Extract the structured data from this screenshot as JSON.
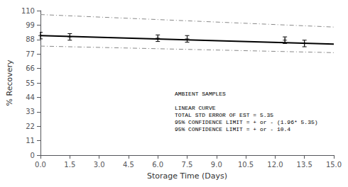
{
  "chart_data": {
    "type": "line",
    "xlabel": "Storage Time (Days)",
    "ylabel": "% Recovery",
    "xlim": [
      0,
      15
    ],
    "ylim": [
      0,
      110
    ],
    "xticks": [
      {
        "value": 0,
        "label": "0.0"
      },
      1.5,
      {
        "value": 3,
        "label": "3.0"
      },
      4.5,
      {
        "value": 6,
        "label": "6.0"
      },
      7.5,
      {
        "value": 9,
        "label": "9.0"
      },
      10.5,
      {
        "value": 12,
        "label": "12.0"
      },
      13.5,
      {
        "value": 15,
        "label": "15.0"
      }
    ],
    "yticks": [
      0,
      11,
      22,
      33,
      44,
      55,
      66,
      77,
      88,
      99,
      110
    ],
    "grid": false,
    "series": [
      {
        "type": "line",
        "color": "#888888",
        "line_style": "dashdot",
        "x": [
          0,
          15
        ],
        "values": [
          107.0,
          97.5
        ]
      },
      {
        "type": "line",
        "color": "#888888",
        "line_style": "dashdot",
        "x": [
          0,
          15
        ],
        "values": [
          83.0,
          78.0
        ]
      },
      {
        "type": "line",
        "color": "#000000",
        "line_style": "solid",
        "x": [
          0,
          15
        ],
        "values": [
          91.0,
          84.5
        ]
      },
      {
        "type": "scatter",
        "color": "#000000",
        "marker": "plus",
        "x": [
          0.0,
          1.5,
          6.0,
          7.5,
          12.5,
          13.5
        ],
        "values": [
          91.0,
          90.0,
          89.0,
          88.5,
          87.5,
          85.0
        ],
        "yerr": [
          2.5,
          2.5,
          2.5,
          2.5,
          2.5,
          2.5
        ]
      }
    ],
    "annotation": "AMBIENT SAMPLES\n\nLINEAR CURVE\nTOTAL STD ERROR OF EST = 5.35\n95% CONFIDENCE LIMIT = + or - (1.96* 5.35)\n95% CONFIDENCE LIMIT = + or - 10.4"
  }
}
